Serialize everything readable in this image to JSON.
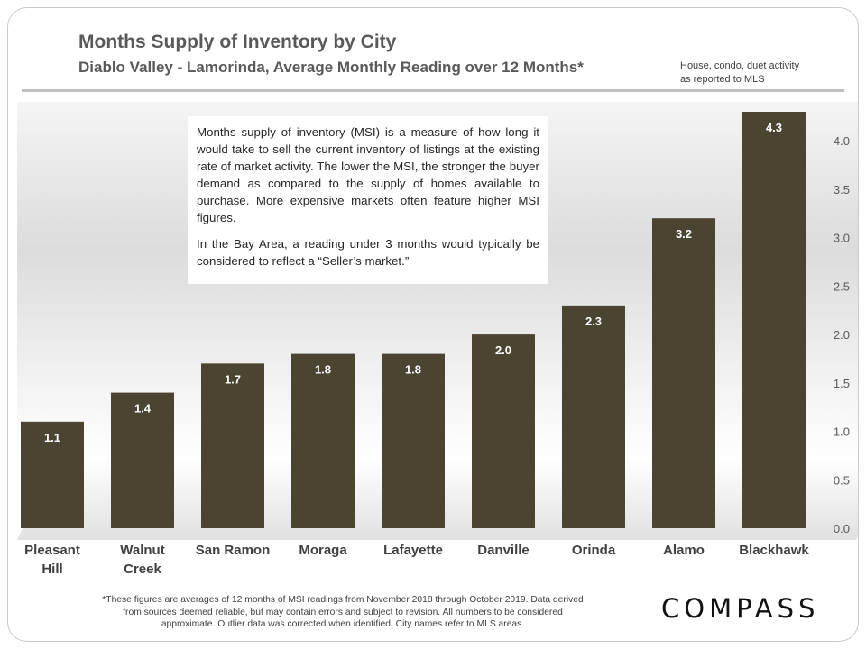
{
  "header": {
    "title": "Months Supply of Inventory by City",
    "subtitle": "Diablo Valley - Lamorinda,  Average Monthly Reading over 12 Months*",
    "source_line1": "House, condo, duet activity",
    "source_line2": "as reported to MLS"
  },
  "note": {
    "paragraph1": "Months supply of inventory (MSI) is a measure of how long it would take to sell the current inventory of listings at the existing rate of market activity. The lower the MSI, the stronger the buyer demand as compared to the supply of homes available to purchase. More expensive markets often feature higher MSI figures.",
    "paragraph2": "In the Bay Area, a reading under 3 months would typically be considered to reflect a “Seller’s market.”"
  },
  "footer": {
    "line1": "*These figures are averages of 12 months of MSI readings from November 2018 through  October 2019. Data derived",
    "line2": "from sources deemed reliable, but may contain errors and subject to revision. All numbers to be considered",
    "line3": "approximate. Outlier data was corrected when identified. City names refer to MLS areas.",
    "logo": "COMPASS"
  },
  "colors": {
    "bar": "#4a4430",
    "bar_label": "#ffffff",
    "axis_text": "#595959",
    "category_text": "#404040"
  },
  "chart_data": {
    "type": "bar",
    "title": "Months Supply of Inventory by City",
    "xlabel": "",
    "ylabel": "",
    "categories": [
      [
        "Pleasant",
        "Hill"
      ],
      [
        "Walnut",
        "Creek"
      ],
      [
        "San Ramon"
      ],
      [
        "Moraga"
      ],
      [
        "Lafayette"
      ],
      [
        "Danville"
      ],
      [
        "Orinda"
      ],
      [
        "Alamo"
      ],
      [
        "Blackhawk"
      ]
    ],
    "values": [
      1.1,
      1.4,
      1.7,
      1.8,
      1.8,
      2.0,
      2.3,
      3.2,
      4.3
    ],
    "value_labels": [
      "1.1",
      "1.4",
      "1.7",
      "1.8",
      "1.8",
      "2.0",
      "2.3",
      "3.2",
      "4.3"
    ],
    "ylim": [
      0,
      4.3
    ],
    "yticks": [
      "0.0",
      "0.5",
      "1.0",
      "1.5",
      "2.0",
      "2.5",
      "3.0",
      "3.5",
      "4.0"
    ],
    "ytick_values": [
      0,
      0.5,
      1.0,
      1.5,
      2.0,
      2.5,
      3.0,
      3.5,
      4.0
    ],
    "grid": false,
    "y_axis_side": "right"
  }
}
